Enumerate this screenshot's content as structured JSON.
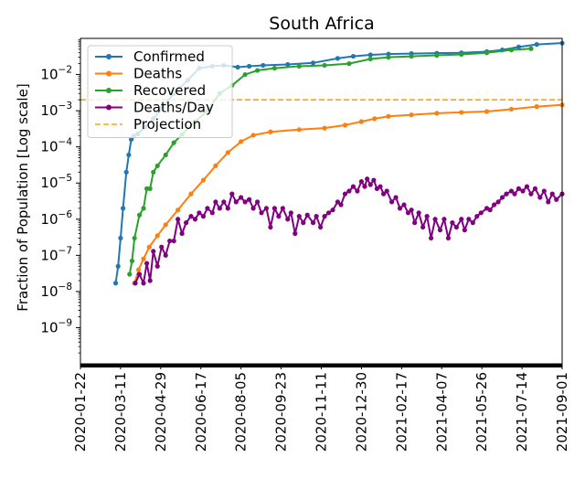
{
  "chart_data": {
    "type": "line",
    "title": "South Africa",
    "xlabel": "",
    "ylabel": "Fraction of Population [Log scale]",
    "yscale": "log",
    "ylim": [
      1e-10,
      0.1
    ],
    "xlim": [
      "2020-01-22",
      "2021-09-01"
    ],
    "x_ticks": [
      "2020-01-22",
      "2020-03-11",
      "2020-04-29",
      "2020-06-17",
      "2020-08-05",
      "2020-09-23",
      "2020-11-11",
      "2020-12-30",
      "2021-02-17",
      "2021-04-07",
      "2021-05-26",
      "2021-07-14",
      "2021-09-01"
    ],
    "y_ticks": [
      {
        "value": 1e-09,
        "base": "10",
        "exp": "−9"
      },
      {
        "value": 1e-08,
        "base": "10",
        "exp": "−8"
      },
      {
        "value": 1e-07,
        "base": "10",
        "exp": "−7"
      },
      {
        "value": 1e-06,
        "base": "10",
        "exp": "−6"
      },
      {
        "value": 1e-05,
        "base": "10",
        "exp": "−5"
      },
      {
        "value": 0.0001,
        "base": "10",
        "exp": "−4"
      },
      {
        "value": 0.001,
        "base": "10",
        "exp": "−3"
      },
      {
        "value": 0.01,
        "base": "10",
        "exp": "−2"
      }
    ],
    "legend_position": "top-left",
    "series": [
      {
        "name": "Confirmed",
        "color": "#1f77b4",
        "style": "line-marker",
        "points": [
          [
            "2020-03-05",
            1.7e-08
          ],
          [
            "2020-03-08",
            5e-08
          ],
          [
            "2020-03-11",
            3e-07
          ],
          [
            "2020-03-14",
            2e-06
          ],
          [
            "2020-03-18",
            2e-05
          ],
          [
            "2020-03-21",
            6e-05
          ],
          [
            "2020-03-24",
            0.00016
          ],
          [
            "2020-03-27",
            0.0002
          ],
          [
            "2020-04-01",
            0.00023
          ],
          [
            "2020-04-10",
            0.00035
          ],
          [
            "2020-04-20",
            0.0006
          ],
          [
            "2020-05-01",
            0.0012
          ],
          [
            "2020-05-15",
            0.003
          ],
          [
            "2020-06-01",
            0.007
          ],
          [
            "2020-06-15",
            0.015
          ],
          [
            "2020-07-01",
            0.017
          ],
          [
            "2020-07-15",
            0.018
          ],
          [
            "2020-08-01",
            0.016
          ],
          [
            "2020-08-15",
            0.017
          ],
          [
            "2020-09-01",
            0.018
          ],
          [
            "2020-10-01",
            0.019
          ],
          [
            "2020-11-01",
            0.021
          ],
          [
            "2020-12-01",
            0.028
          ],
          [
            "2020-12-20",
            0.032
          ],
          [
            "2021-01-10",
            0.035
          ],
          [
            "2021-02-01",
            0.037
          ],
          [
            "2021-03-01",
            0.038
          ],
          [
            "2021-04-01",
            0.039
          ],
          [
            "2021-05-01",
            0.04
          ],
          [
            "2021-06-01",
            0.043
          ],
          [
            "2021-06-20",
            0.048
          ],
          [
            "2021-07-10",
            0.058
          ],
          [
            "2021-08-01",
            0.068
          ],
          [
            "2021-09-01",
            0.074
          ]
        ]
      },
      {
        "name": "Deaths",
        "color": "#ff7f0e",
        "style": "line-marker",
        "points": [
          [
            "2020-03-28",
            1.7e-08
          ],
          [
            "2020-04-02",
            4e-08
          ],
          [
            "2020-04-08",
            8e-08
          ],
          [
            "2020-04-15",
            1.7e-07
          ],
          [
            "2020-04-25",
            3.5e-07
          ],
          [
            "2020-05-05",
            7e-07
          ],
          [
            "2020-05-20",
            1.8e-06
          ],
          [
            "2020-06-05",
            5e-06
          ],
          [
            "2020-06-20",
            1.2e-05
          ],
          [
            "2020-07-05",
            3e-05
          ],
          [
            "2020-07-20",
            7e-05
          ],
          [
            "2020-08-05",
            0.00014
          ],
          [
            "2020-08-20",
            0.00021
          ],
          [
            "2020-09-10",
            0.00026
          ],
          [
            "2020-10-15",
            0.0003
          ],
          [
            "2020-11-15",
            0.00033
          ],
          [
            "2020-12-10",
            0.0004
          ],
          [
            "2020-12-30",
            0.0005
          ],
          [
            "2021-01-15",
            0.0006
          ],
          [
            "2021-02-01",
            0.0007
          ],
          [
            "2021-03-01",
            0.00077
          ],
          [
            "2021-04-01",
            0.00085
          ],
          [
            "2021-05-01",
            0.0009
          ],
          [
            "2021-06-01",
            0.00095
          ],
          [
            "2021-07-01",
            0.0011
          ],
          [
            "2021-08-01",
            0.0013
          ],
          [
            "2021-09-01",
            0.00145
          ]
        ]
      },
      {
        "name": "Recovered",
        "color": "#2ca02c",
        "style": "line-marker",
        "points": [
          [
            "2020-03-22",
            3e-08
          ],
          [
            "2020-03-25",
            7e-08
          ],
          [
            "2020-03-28",
            3e-07
          ],
          [
            "2020-04-03",
            1.3e-06
          ],
          [
            "2020-04-08",
            2e-06
          ],
          [
            "2020-04-12",
            7e-06
          ],
          [
            "2020-04-16",
            7e-06
          ],
          [
            "2020-04-20",
            2e-05
          ],
          [
            "2020-04-25",
            3e-05
          ],
          [
            "2020-05-05",
            6e-05
          ],
          [
            "2020-05-15",
            0.00013
          ],
          [
            "2020-05-25",
            0.00022
          ],
          [
            "2020-06-10",
            0.0005
          ],
          [
            "2020-06-25",
            0.001
          ],
          [
            "2020-07-10",
            0.003
          ],
          [
            "2020-07-25",
            0.005
          ],
          [
            "2020-08-10",
            0.01
          ],
          [
            "2020-08-25",
            0.013
          ],
          [
            "2020-09-15",
            0.015
          ],
          [
            "2020-10-15",
            0.017
          ],
          [
            "2020-11-15",
            0.018
          ],
          [
            "2020-12-15",
            0.02
          ],
          [
            "2021-01-10",
            0.027
          ],
          [
            "2021-02-01",
            0.03
          ],
          [
            "2021-03-01",
            0.032
          ],
          [
            "2021-04-01",
            0.034
          ],
          [
            "2021-05-01",
            0.036
          ],
          [
            "2021-06-01",
            0.04
          ],
          [
            "2021-07-01",
            0.048
          ],
          [
            "2021-07-25",
            0.052
          ]
        ]
      },
      {
        "name": "Deaths/Day",
        "color": "#800080",
        "style": "line-marker",
        "points": [
          [
            "2020-03-29",
            1.7e-08
          ],
          [
            "2020-04-03",
            3e-08
          ],
          [
            "2020-04-08",
            1.7e-08
          ],
          [
            "2020-04-12",
            6e-08
          ],
          [
            "2020-04-16",
            2e-08
          ],
          [
            "2020-04-20",
            1.3e-07
          ],
          [
            "2020-04-25",
            5e-08
          ],
          [
            "2020-04-30",
            1.7e-07
          ],
          [
            "2020-05-05",
            1e-07
          ],
          [
            "2020-05-10",
            2.5e-07
          ],
          [
            "2020-05-15",
            2.5e-07
          ],
          [
            "2020-05-20",
            1e-06
          ],
          [
            "2020-05-25",
            4e-07
          ],
          [
            "2020-05-30",
            8e-07
          ],
          [
            "2020-06-05",
            1.2e-06
          ],
          [
            "2020-06-10",
            1e-06
          ],
          [
            "2020-06-15",
            1.5e-06
          ],
          [
            "2020-06-20",
            1.2e-06
          ],
          [
            "2020-06-25",
            2e-06
          ],
          [
            "2020-07-01",
            1.5e-06
          ],
          [
            "2020-07-05",
            3e-06
          ],
          [
            "2020-07-10",
            2e-06
          ],
          [
            "2020-07-15",
            3e-06
          ],
          [
            "2020-07-20",
            2e-06
          ],
          [
            "2020-07-25",
            5e-06
          ],
          [
            "2020-07-30",
            3e-06
          ],
          [
            "2020-08-05",
            4e-06
          ],
          [
            "2020-08-10",
            3e-06
          ],
          [
            "2020-08-15",
            3.5e-06
          ],
          [
            "2020-08-20",
            2e-06
          ],
          [
            "2020-08-25",
            3e-06
          ],
          [
            "2020-08-30",
            1.5e-06
          ],
          [
            "2020-09-05",
            2e-06
          ],
          [
            "2020-09-10",
            6e-07
          ],
          [
            "2020-09-15",
            2e-06
          ],
          [
            "2020-09-20",
            1.2e-06
          ],
          [
            "2020-09-25",
            2e-06
          ],
          [
            "2020-10-01",
            1e-06
          ],
          [
            "2020-10-05",
            1.5e-06
          ],
          [
            "2020-10-10",
            4e-07
          ],
          [
            "2020-10-15",
            1.2e-06
          ],
          [
            "2020-10-20",
            8e-07
          ],
          [
            "2020-10-25",
            1.3e-06
          ],
          [
            "2020-11-01",
            8e-07
          ],
          [
            "2020-11-05",
            1.2e-06
          ],
          [
            "2020-11-10",
            6e-07
          ],
          [
            "2020-11-15",
            1.2e-06
          ],
          [
            "2020-11-20",
            1.5e-06
          ],
          [
            "2020-11-25",
            1.8e-06
          ],
          [
            "2020-12-01",
            3e-06
          ],
          [
            "2020-12-05",
            2.5e-06
          ],
          [
            "2020-12-10",
            5e-06
          ],
          [
            "2020-12-15",
            6e-06
          ],
          [
            "2020-12-20",
            8e-06
          ],
          [
            "2020-12-25",
            6e-06
          ],
          [
            "2020-12-30",
            1.1e-05
          ],
          [
            "2021-01-03",
            8e-06
          ],
          [
            "2021-01-06",
            1.3e-05
          ],
          [
            "2021-01-10",
            9e-06
          ],
          [
            "2021-01-14",
            1.2e-05
          ],
          [
            "2021-01-18",
            7e-06
          ],
          [
            "2021-01-22",
            8e-06
          ],
          [
            "2021-01-26",
            5e-06
          ],
          [
            "2021-01-30",
            6e-06
          ],
          [
            "2021-02-05",
            3e-06
          ],
          [
            "2021-02-10",
            4e-06
          ],
          [
            "2021-02-15",
            2e-06
          ],
          [
            "2021-02-20",
            2.5e-06
          ],
          [
            "2021-02-25",
            1.5e-06
          ],
          [
            "2021-03-01",
            1.8e-06
          ],
          [
            "2021-03-05",
            8e-07
          ],
          [
            "2021-03-10",
            1.5e-06
          ],
          [
            "2021-03-15",
            6e-07
          ],
          [
            "2021-03-20",
            1.2e-06
          ],
          [
            "2021-03-25",
            3e-07
          ],
          [
            "2021-03-30",
            1e-06
          ],
          [
            "2021-04-05",
            5e-07
          ],
          [
            "2021-04-10",
            1e-06
          ],
          [
            "2021-04-15",
            3e-07
          ],
          [
            "2021-04-20",
            8e-07
          ],
          [
            "2021-04-25",
            6e-07
          ],
          [
            "2021-05-01",
            1e-06
          ],
          [
            "2021-05-05",
            5e-07
          ],
          [
            "2021-05-10",
            1e-06
          ],
          [
            "2021-05-15",
            8e-07
          ],
          [
            "2021-05-20",
            1.2e-06
          ],
          [
            "2021-05-25",
            1.5e-06
          ],
          [
            "2021-06-01",
            2e-06
          ],
          [
            "2021-06-05",
            1.8e-06
          ],
          [
            "2021-06-10",
            2.5e-06
          ],
          [
            "2021-06-15",
            3e-06
          ],
          [
            "2021-06-20",
            4e-06
          ],
          [
            "2021-06-25",
            5e-06
          ],
          [
            "2021-07-01",
            6e-06
          ],
          [
            "2021-07-05",
            5e-06
          ],
          [
            "2021-07-10",
            7e-06
          ],
          [
            "2021-07-15",
            6e-06
          ],
          [
            "2021-07-20",
            8e-06
          ],
          [
            "2021-07-25",
            5e-06
          ],
          [
            "2021-07-30",
            7e-06
          ],
          [
            "2021-08-05",
            4e-06
          ],
          [
            "2021-08-10",
            6e-06
          ],
          [
            "2021-08-15",
            3e-06
          ],
          [
            "2021-08-20",
            5e-06
          ],
          [
            "2021-08-25",
            3.5e-06
          ],
          [
            "2021-09-01",
            5e-06
          ]
        ]
      },
      {
        "name": "Projection",
        "color": "#ffa500",
        "style": "dashed",
        "value": 0.002
      }
    ]
  }
}
